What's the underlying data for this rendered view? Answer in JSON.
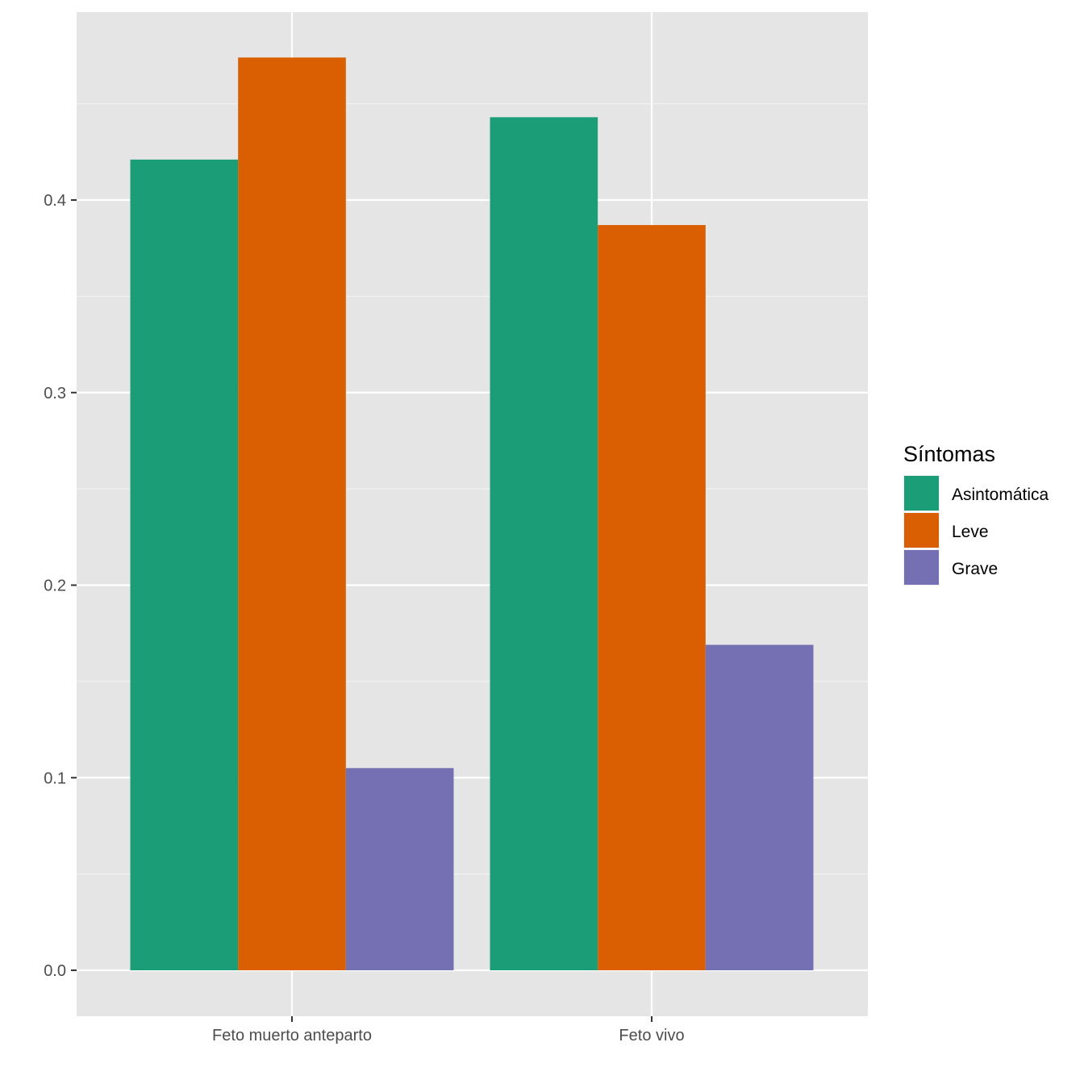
{
  "chart_data": {
    "type": "bar",
    "title": "",
    "xlabel": "",
    "ylabel": "",
    "categories": [
      "Feto muerto anteparto",
      "Feto vivo"
    ],
    "series": [
      {
        "name": "Asintomática",
        "color": "#1B9E77",
        "values": [
          0.421,
          0.443
        ]
      },
      {
        "name": "Leve",
        "color": "#D95F02",
        "values": [
          0.474,
          0.387
        ]
      },
      {
        "name": "Grave",
        "color": "#7570B3",
        "values": [
          0.105,
          0.169
        ]
      }
    ],
    "ylim": [
      -0.0235,
      0.497
    ],
    "y_ticks": [
      0.0,
      0.1,
      0.2,
      0.3,
      0.4
    ],
    "y_tick_labels": [
      "0.0",
      "0.1",
      "0.2",
      "0.3",
      "0.4"
    ],
    "legend": {
      "title": "Síntomas",
      "position": "right"
    },
    "grid": true,
    "panel_background": "#E5E5E5"
  }
}
